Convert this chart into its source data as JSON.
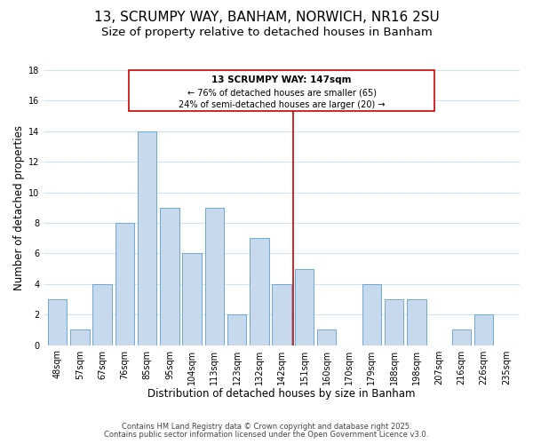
{
  "title": "13, SCRUMPY WAY, BANHAM, NORWICH, NR16 2SU",
  "subtitle": "Size of property relative to detached houses in Banham",
  "xlabel": "Distribution of detached houses by size in Banham",
  "ylabel": "Number of detached properties",
  "bar_labels": [
    "48sqm",
    "57sqm",
    "67sqm",
    "76sqm",
    "85sqm",
    "95sqm",
    "104sqm",
    "113sqm",
    "123sqm",
    "132sqm",
    "142sqm",
    "151sqm",
    "160sqm",
    "170sqm",
    "179sqm",
    "188sqm",
    "198sqm",
    "207sqm",
    "216sqm",
    "226sqm",
    "235sqm"
  ],
  "bar_values": [
    3,
    1,
    4,
    8,
    14,
    9,
    6,
    9,
    2,
    7,
    4,
    5,
    1,
    0,
    4,
    3,
    3,
    0,
    1,
    2,
    0
  ],
  "bar_color": "#c8d9ee",
  "bar_edge_color": "#6aaad4",
  "vline_x": 10.5,
  "vline_color": "#cc0000",
  "annotation_title": "13 SCRUMPY WAY: 147sqm",
  "annotation_line1": "← 76% of detached houses are smaller (65)",
  "annotation_line2": "24% of semi-detached houses are larger (20) →",
  "annotation_box_color": "#ffffff",
  "annotation_box_edge": "#cc0000",
  "ylim": [
    0,
    18
  ],
  "yticks": [
    0,
    2,
    4,
    6,
    8,
    10,
    12,
    14,
    16,
    18
  ],
  "footer1": "Contains HM Land Registry data © Crown copyright and database right 2025.",
  "footer2": "Contains public sector information licensed under the Open Government Licence v3.0.",
  "background_color": "#ffffff",
  "grid_color": "#d0e4f5",
  "title_fontsize": 11,
  "subtitle_fontsize": 9.5,
  "axis_label_fontsize": 8.5,
  "tick_fontsize": 7,
  "annotation_title_fontsize": 7.5,
  "annotation_text_fontsize": 7,
  "footer_fontsize": 6
}
